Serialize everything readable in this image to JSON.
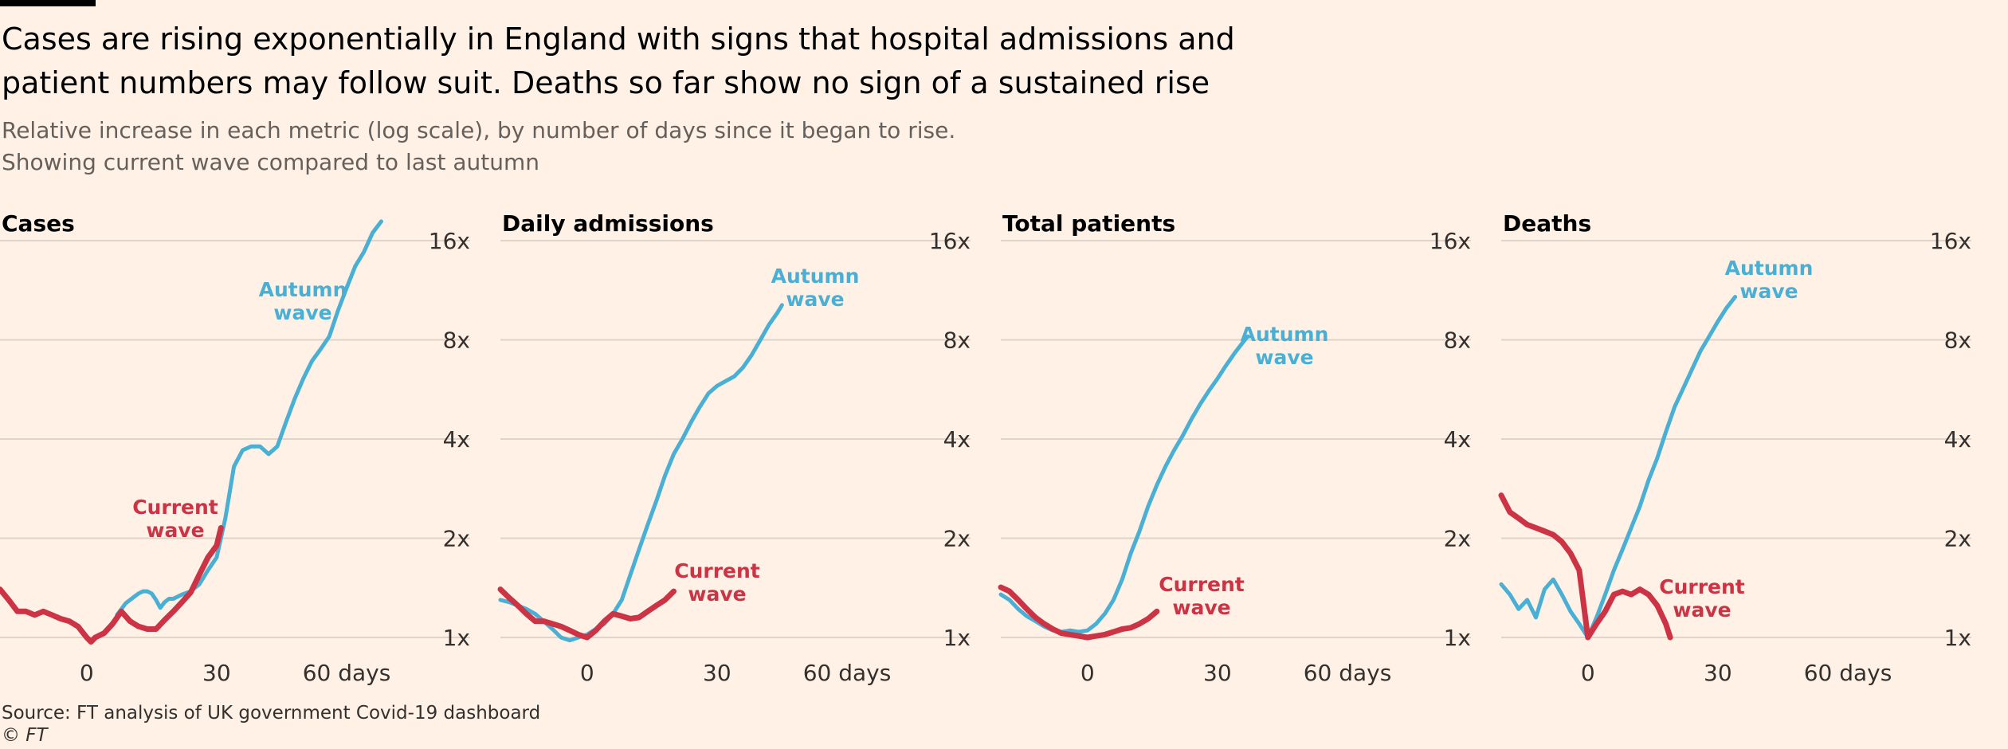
{
  "title": "Cases are rising exponentially in England with signs that hospital admissions and patient numbers may follow suit. Deaths so far show no sign of a sustained rise",
  "subtitle_lines": [
    "Relative increase in each metric (log scale), by number of days since it began to rise.",
    "Showing current wave compared to last autumn"
  ],
  "source": "Source: FT analysis of UK government Covid-19 dashboard",
  "copyright": "© FT",
  "colors": {
    "autumn": "#4aafd5",
    "current": "#cc3344",
    "grid": "#e0d3c8",
    "text": "#33302e"
  },
  "chart_data": [
    {
      "type": "line",
      "title": "Cases",
      "y_scale": "log2",
      "ylim": [
        1,
        16
      ],
      "yticks": [
        1,
        2,
        4,
        8,
        16
      ],
      "ytick_labels": [
        "1x",
        "2x",
        "4x",
        "8x",
        "16x"
      ],
      "xlim": [
        -20,
        76
      ],
      "xticks": [
        0,
        30,
        60
      ],
      "xtick_labels": [
        "0",
        "30",
        "60 days"
      ],
      "series": [
        {
          "name": "Autumn wave",
          "color": "#4aafd5",
          "label_lines": [
            "Autumn",
            "wave"
          ],
          "x": [
            7,
            9,
            11,
            12,
            13,
            14,
            15,
            16,
            17,
            18,
            19,
            20,
            22,
            24,
            26,
            28,
            30,
            32,
            34,
            36,
            38,
            40,
            42,
            44,
            46,
            48,
            50,
            52,
            54,
            56,
            58,
            60,
            62,
            64,
            66,
            68
          ],
          "y": [
            1.17,
            1.27,
            1.33,
            1.36,
            1.38,
            1.38,
            1.36,
            1.3,
            1.23,
            1.28,
            1.31,
            1.31,
            1.35,
            1.38,
            1.45,
            1.6,
            1.75,
            2.3,
            3.3,
            3.7,
            3.8,
            3.8,
            3.6,
            3.8,
            4.5,
            5.3,
            6.1,
            6.9,
            7.5,
            8.2,
            9.8,
            11.5,
            13.4,
            14.8,
            16.9,
            18.3
          ]
        },
        {
          "name": "Current wave",
          "color": "#cc3344",
          "label_lines": [
            "Current",
            "wave"
          ],
          "x": [
            -20,
            -18,
            -16,
            -14,
            -12,
            -10,
            -8,
            -6,
            -4,
            -2,
            0,
            1,
            2,
            4,
            6,
            8,
            10,
            12,
            14,
            16,
            18,
            20,
            22,
            24,
            26,
            28,
            30,
            31
          ],
          "y": [
            1.4,
            1.3,
            1.2,
            1.2,
            1.17,
            1.2,
            1.17,
            1.14,
            1.12,
            1.08,
            1.0,
            0.97,
            1.0,
            1.03,
            1.1,
            1.2,
            1.12,
            1.08,
            1.06,
            1.06,
            1.13,
            1.2,
            1.28,
            1.37,
            1.55,
            1.75,
            1.9,
            2.15
          ]
        }
      ]
    },
    {
      "type": "line",
      "title": "Daily admissions",
      "y_scale": "log2",
      "ylim": [
        1,
        16
      ],
      "yticks": [
        1,
        2,
        4,
        8,
        16
      ],
      "ytick_labels": [
        "1x",
        "2x",
        "4x",
        "8x",
        "16x"
      ],
      "xlim": [
        -20,
        76
      ],
      "xticks": [
        0,
        30,
        60
      ],
      "xtick_labels": [
        "0",
        "30",
        "60 days"
      ],
      "series": [
        {
          "name": "Autumn wave",
          "color": "#4aafd5",
          "label_lines": [
            "Autumn",
            "wave"
          ],
          "x": [
            -20,
            -18,
            -16,
            -14,
            -12,
            -10,
            -8,
            -6,
            -4,
            -2,
            0,
            2,
            4,
            6,
            8,
            10,
            12,
            14,
            16,
            18,
            20,
            22,
            24,
            26,
            28,
            30,
            32,
            34,
            36,
            38,
            40,
            42,
            44,
            45
          ],
          "y": [
            1.3,
            1.28,
            1.25,
            1.22,
            1.18,
            1.12,
            1.06,
            1.0,
            0.98,
            1.0,
            1.02,
            1.06,
            1.1,
            1.18,
            1.3,
            1.55,
            1.85,
            2.2,
            2.6,
            3.1,
            3.6,
            4.0,
            4.5,
            5.0,
            5.5,
            5.8,
            6.0,
            6.2,
            6.6,
            7.2,
            8.0,
            8.9,
            9.7,
            10.2
          ]
        },
        {
          "name": "Current wave",
          "color": "#cc3344",
          "label_lines": [
            "Current",
            "wave"
          ],
          "x": [
            -20,
            -18,
            -16,
            -14,
            -12,
            -10,
            -8,
            -6,
            -4,
            -2,
            0,
            2,
            4,
            6,
            8,
            10,
            12,
            14,
            16,
            18,
            20
          ],
          "y": [
            1.4,
            1.32,
            1.25,
            1.18,
            1.12,
            1.12,
            1.1,
            1.08,
            1.05,
            1.02,
            1.0,
            1.05,
            1.12,
            1.18,
            1.16,
            1.14,
            1.15,
            1.2,
            1.25,
            1.3,
            1.38
          ]
        }
      ]
    },
    {
      "type": "line",
      "title": "Total patients",
      "y_scale": "log2",
      "ylim": [
        1,
        16
      ],
      "yticks": [
        1,
        2,
        4,
        8,
        16
      ],
      "ytick_labels": [
        "1x",
        "2x",
        "4x",
        "8x",
        "16x"
      ],
      "xlim": [
        -20,
        76
      ],
      "xticks": [
        0,
        30,
        60
      ],
      "xtick_labels": [
        "0",
        "30",
        "60 days"
      ],
      "series": [
        {
          "name": "Autumn wave",
          "color": "#4aafd5",
          "label_lines": [
            "Autumn",
            "wave"
          ],
          "x": [
            -20,
            -18,
            -16,
            -14,
            -12,
            -10,
            -8,
            -6,
            -4,
            -2,
            0,
            2,
            4,
            6,
            8,
            10,
            12,
            14,
            16,
            18,
            20,
            22,
            24,
            26,
            28,
            30,
            32,
            34,
            36,
            37
          ],
          "y": [
            1.35,
            1.3,
            1.22,
            1.16,
            1.12,
            1.08,
            1.05,
            1.04,
            1.05,
            1.04,
            1.05,
            1.1,
            1.18,
            1.3,
            1.5,
            1.8,
            2.1,
            2.5,
            2.9,
            3.3,
            3.7,
            4.1,
            4.6,
            5.1,
            5.6,
            6.1,
            6.7,
            7.3,
            7.9,
            8.2
          ]
        },
        {
          "name": "Current wave",
          "color": "#cc3344",
          "label_lines": [
            "Current",
            "wave"
          ],
          "x": [
            -20,
            -18,
            -16,
            -14,
            -12,
            -10,
            -8,
            -6,
            -4,
            -2,
            0,
            2,
            4,
            6,
            8,
            10,
            12,
            14,
            16
          ],
          "y": [
            1.42,
            1.38,
            1.3,
            1.22,
            1.15,
            1.1,
            1.06,
            1.03,
            1.02,
            1.01,
            1.0,
            1.01,
            1.02,
            1.04,
            1.06,
            1.07,
            1.1,
            1.14,
            1.2
          ]
        }
      ]
    },
    {
      "type": "line",
      "title": "Deaths",
      "y_scale": "log2",
      "ylim": [
        1,
        16
      ],
      "yticks": [
        1,
        2,
        4,
        8,
        16
      ],
      "ytick_labels": [
        "1x",
        "2x",
        "4x",
        "8x",
        "16x"
      ],
      "xlim": [
        -20,
        76
      ],
      "xticks": [
        0,
        30,
        60
      ],
      "xtick_labels": [
        "0",
        "30",
        "60 days"
      ],
      "series": [
        {
          "name": "Autumn wave",
          "color": "#4aafd5",
          "label_lines": [
            "Autumn",
            "wave"
          ],
          "x": [
            -20,
            -18,
            -16,
            -14,
            -12,
            -10,
            -8,
            -6,
            -4,
            -2,
            0,
            2,
            4,
            6,
            8,
            10,
            12,
            14,
            16,
            18,
            20,
            22,
            24,
            26,
            28,
            30,
            32,
            34
          ],
          "y": [
            1.45,
            1.35,
            1.22,
            1.3,
            1.15,
            1.4,
            1.5,
            1.35,
            1.2,
            1.1,
            1.0,
            1.15,
            1.35,
            1.6,
            1.85,
            2.15,
            2.5,
            3.0,
            3.5,
            4.2,
            5.0,
            5.7,
            6.5,
            7.4,
            8.2,
            9.1,
            10.0,
            10.8
          ]
        },
        {
          "name": "Current wave",
          "color": "#cc3344",
          "label_lines": [
            "Current",
            "wave"
          ],
          "x": [
            -20,
            -18,
            -16,
            -14,
            -12,
            -10,
            -8,
            -6,
            -4,
            -2,
            0,
            2,
            4,
            6,
            8,
            10,
            12,
            14,
            16,
            18,
            19
          ],
          "y": [
            2.7,
            2.4,
            2.3,
            2.2,
            2.15,
            2.1,
            2.05,
            1.95,
            1.8,
            1.6,
            1.0,
            1.1,
            1.2,
            1.35,
            1.38,
            1.35,
            1.4,
            1.35,
            1.25,
            1.1,
            1.0
          ]
        }
      ]
    }
  ]
}
